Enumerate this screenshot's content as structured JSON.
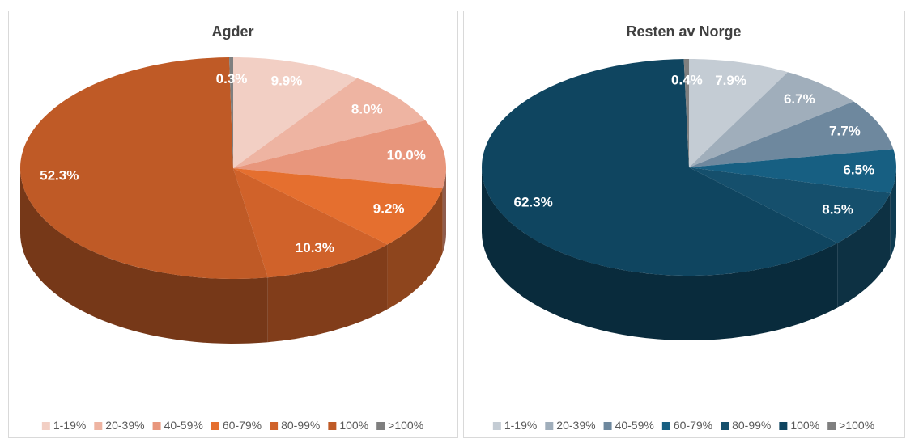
{
  "chart_data": [
    {
      "type": "pie",
      "title": "Agder",
      "categories": [
        "1-19%",
        "20-39%",
        "40-59%",
        "60-79%",
        "80-99%",
        "100%",
        ">100%"
      ],
      "values": [
        9.9,
        8.0,
        10.0,
        9.2,
        10.3,
        52.3,
        0.3
      ],
      "value_labels": [
        "9.9%",
        "8.0%",
        "10.0%",
        "9.2%",
        "10.3%",
        "52.3%",
        "0.3%"
      ],
      "colors": [
        "#f2cfc4",
        "#eeb4a2",
        "#e8967c",
        "#e56f2f",
        "#d0622a",
        "#bf5a26",
        "#7f7f7f"
      ],
      "legend": "bottom"
    },
    {
      "type": "pie",
      "title": "Resten av Norge",
      "categories": [
        "1-19%",
        "20-39%",
        "40-59%",
        "60-79%",
        "80-99%",
        "100%",
        ">100%"
      ],
      "values": [
        7.9,
        6.7,
        7.7,
        6.5,
        8.5,
        62.3,
        0.4
      ],
      "value_labels": [
        "7.9%",
        "6.7%",
        "7.7%",
        "6.5%",
        "8.5%",
        "62.3%",
        "0.4%"
      ],
      "colors": [
        "#c4ccd4",
        "#a0aebb",
        "#6e889e",
        "#175f82",
        "#154f6c",
        "#0f4560",
        "#7f7f7f"
      ],
      "legend": "bottom"
    }
  ]
}
